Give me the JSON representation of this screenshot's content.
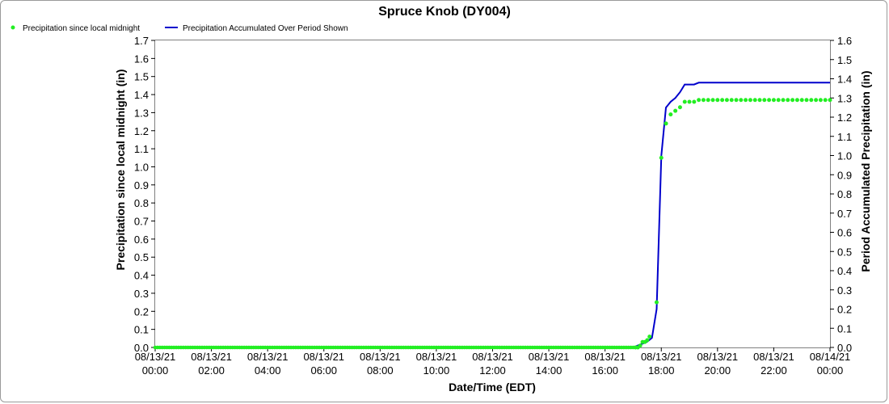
{
  "chart_data": {
    "type": "line",
    "title": "Spruce Knob (DY004)",
    "xlabel": "Date/Time (EDT)",
    "ylabel": "Precipitation since local midnight (in)",
    "y2label": "Period Accumulated Precipitation (in)",
    "ylim": [
      0,
      1.7
    ],
    "y2lim": [
      0,
      1.6
    ],
    "yticks": [
      "0.0",
      "0.1",
      "0.2",
      "0.3",
      "0.4",
      "0.5",
      "0.6",
      "0.7",
      "0.8",
      "0.9",
      "1.0",
      "1.1",
      "1.2",
      "1.3",
      "1.4",
      "1.5",
      "1.6",
      "1.7"
    ],
    "y2ticks": [
      "0.0",
      "0.1",
      "0.2",
      "0.3",
      "0.4",
      "0.5",
      "0.6",
      "0.7",
      "0.8",
      "0.9",
      "1.0",
      "1.1",
      "1.2",
      "1.3",
      "1.4",
      "1.5",
      "1.6"
    ],
    "xlim": [
      "08/13/21 00:00",
      "08/14/21 00:00"
    ],
    "xticks": [
      {
        "date": "08/13/21",
        "time": "00:00"
      },
      {
        "date": "08/13/21",
        "time": "02:00"
      },
      {
        "date": "08/13/21",
        "time": "04:00"
      },
      {
        "date": "08/13/21",
        "time": "06:00"
      },
      {
        "date": "08/13/21",
        "time": "08:00"
      },
      {
        "date": "08/13/21",
        "time": "10:00"
      },
      {
        "date": "08/13/21",
        "time": "12:00"
      },
      {
        "date": "08/13/21",
        "time": "14:00"
      },
      {
        "date": "08/13/21",
        "time": "16:00"
      },
      {
        "date": "08/13/21",
        "time": "18:00"
      },
      {
        "date": "08/13/21",
        "time": "20:00"
      },
      {
        "date": "08/13/21",
        "time": "22:00"
      },
      {
        "date": "08/14/21",
        "time": "00:00"
      }
    ],
    "grid": true,
    "legend_position": "top-left",
    "series": [
      {
        "name": "Precipitation since local midnight",
        "style": "points",
        "color": "#22ee22",
        "axis": "left",
        "points": [
          [
            "17:05",
            0.0
          ],
          [
            "17:10",
            0.0
          ],
          [
            "17:15",
            0.01
          ],
          [
            "17:20",
            0.03
          ],
          [
            "17:25",
            0.03
          ],
          [
            "17:30",
            0.04
          ],
          [
            "17:35",
            0.06
          ],
          [
            "17:50",
            0.25
          ],
          [
            "18:00",
            1.05
          ],
          [
            "18:10",
            1.24
          ],
          [
            "18:20",
            1.29
          ],
          [
            "18:30",
            1.31
          ],
          [
            "18:40",
            1.33
          ],
          [
            "18:50",
            1.36
          ],
          [
            "19:00",
            1.36
          ],
          [
            "19:10",
            1.36
          ],
          [
            "19:20",
            1.37
          ],
          [
            "19:30",
            1.37
          ],
          [
            "19:40",
            1.37
          ],
          [
            "19:50",
            1.37
          ],
          [
            "20:00",
            1.37
          ],
          [
            "20:10",
            1.37
          ],
          [
            "20:20",
            1.37
          ],
          [
            "20:30",
            1.37
          ],
          [
            "20:40",
            1.37
          ],
          [
            "20:50",
            1.37
          ],
          [
            "21:00",
            1.37
          ],
          [
            "21:10",
            1.37
          ],
          [
            "21:20",
            1.37
          ],
          [
            "21:30",
            1.37
          ],
          [
            "21:40",
            1.37
          ],
          [
            "21:50",
            1.37
          ],
          [
            "22:00",
            1.37
          ],
          [
            "22:10",
            1.37
          ],
          [
            "22:20",
            1.37
          ],
          [
            "22:30",
            1.37
          ],
          [
            "22:40",
            1.37
          ],
          [
            "22:50",
            1.37
          ],
          [
            "23:00",
            1.37
          ],
          [
            "23:10",
            1.37
          ],
          [
            "23:20",
            1.37
          ],
          [
            "23:30",
            1.37
          ],
          [
            "23:40",
            1.37
          ],
          [
            "23:50",
            1.37
          ],
          [
            "24:00",
            1.37
          ]
        ]
      },
      {
        "name": "Precipitation Accumulated Over Period Shown",
        "style": "line",
        "color": "#0000cc",
        "axis": "right",
        "points": [
          [
            "00:00",
            0.0
          ],
          [
            "17:00",
            0.0
          ],
          [
            "17:10",
            0.01
          ],
          [
            "17:20",
            0.02
          ],
          [
            "17:30",
            0.03
          ],
          [
            "17:40",
            0.05
          ],
          [
            "17:50",
            0.2
          ],
          [
            "18:00",
            1.0
          ],
          [
            "18:10",
            1.25
          ],
          [
            "18:20",
            1.28
          ],
          [
            "18:30",
            1.3
          ],
          [
            "18:40",
            1.33
          ],
          [
            "18:50",
            1.37
          ],
          [
            "19:00",
            1.37
          ],
          [
            "19:10",
            1.37
          ],
          [
            "19:20",
            1.38
          ],
          [
            "24:00",
            1.38
          ]
        ]
      }
    ]
  }
}
